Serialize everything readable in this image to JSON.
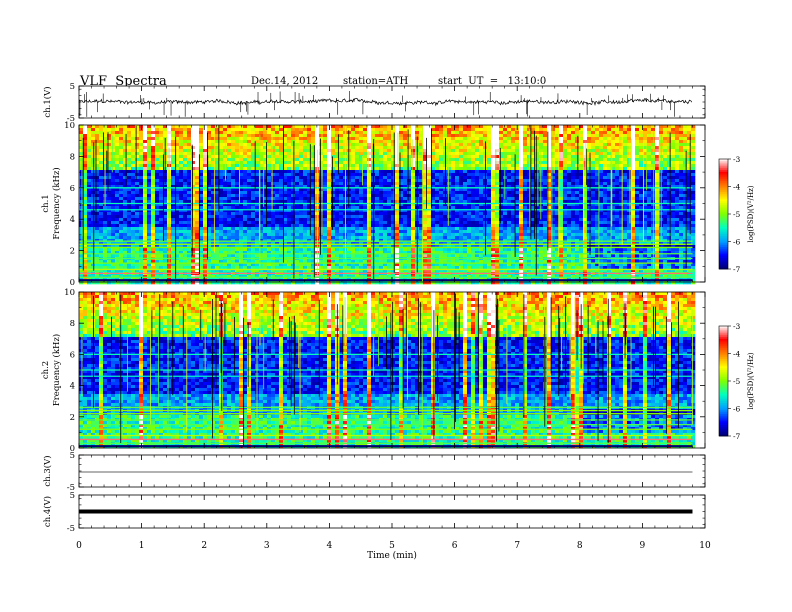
{
  "header": {
    "title": "VLF  Spectra",
    "date": "Dec.14, 2012",
    "station": "station=ATH",
    "start": "start  UT  =   13:10:0"
  },
  "chart_data": [
    {
      "type": "line",
      "panel": "ch1",
      "ylabel": "ch.1(V)",
      "ylim": [
        -5,
        5
      ],
      "yticks": [
        "5",
        "-5"
      ],
      "xlim": [
        0,
        10
      ],
      "x": [
        0,
        9.8
      ],
      "y": [
        0,
        0
      ]
    },
    {
      "type": "heatmap",
      "panel": "spec1",
      "ylabel_channel": "ch.1",
      "ylabel": "Frequency  (kHz)",
      "ylim": [
        0,
        10
      ],
      "yticks": [
        "0",
        "2",
        "4",
        "6",
        "8",
        "10"
      ],
      "xlim": [
        0,
        10
      ],
      "data_end": 9.8,
      "colorbar": {
        "label": "log(PSD)(V²/Hz)",
        "range": [
          -7,
          -3
        ],
        "ticks": [
          "-3",
          "-4",
          "-5",
          "-6",
          "-7"
        ],
        "colors": [
          "#000070",
          "#0000ff",
          "#00a0ff",
          "#00ffc0",
          "#80ff00",
          "#ffff00",
          "#ff8000",
          "#ff0000",
          "#ffffff"
        ]
      }
    },
    {
      "type": "heatmap",
      "panel": "spec2",
      "ylabel_channel": "ch.2",
      "ylabel": "Frequency  (kHz)",
      "ylim": [
        0,
        10
      ],
      "yticks": [
        "0",
        "2",
        "4",
        "6",
        "8",
        "10"
      ],
      "xlim": [
        0,
        10
      ],
      "data_end": 9.8,
      "colorbar": {
        "label": "log(PSD)(V²/Hz)",
        "range": [
          -7,
          -3
        ],
        "ticks": [
          "-3",
          "-4",
          "-5",
          "-6",
          "-7"
        ]
      }
    },
    {
      "type": "line",
      "panel": "ch3",
      "ylabel": "ch.3(V)",
      "ylim": [
        -5,
        5
      ],
      "yticks": [
        "5",
        "-5"
      ],
      "xlim": [
        0,
        10
      ],
      "x": [
        0,
        9.8
      ],
      "y": [
        0,
        0
      ]
    },
    {
      "type": "line",
      "panel": "ch4",
      "ylabel": "ch.4(V)",
      "ylim": [
        -5,
        5
      ],
      "yticks": [
        "5",
        "-5"
      ],
      "xlim": [
        0,
        10
      ],
      "x": [
        0,
        9.8
      ],
      "y": [
        0,
        0
      ]
    }
  ],
  "xaxis": {
    "label": "Time  (min)",
    "ticks": [
      "0",
      "1",
      "2",
      "3",
      "4",
      "5",
      "6",
      "7",
      "8",
      "9",
      "10"
    ]
  }
}
